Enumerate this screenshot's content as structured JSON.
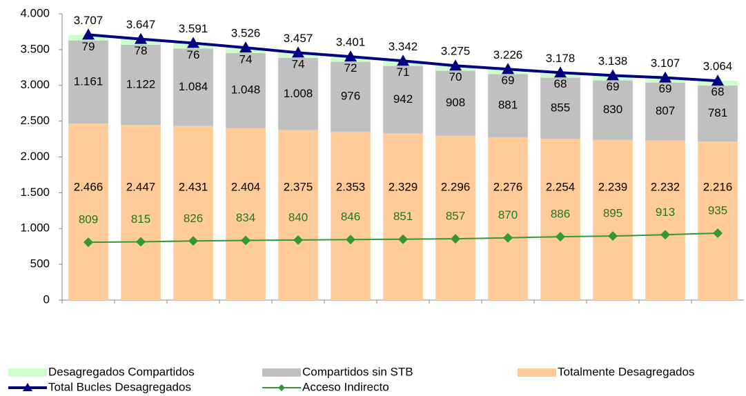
{
  "chart_data": {
    "type": "bar",
    "categories": [
      null,
      null,
      null,
      null,
      null,
      null,
      null,
      null,
      null,
      null,
      null,
      null,
      null
    ],
    "ylim": [
      0,
      4000
    ],
    "yticks": [
      0,
      500,
      {
        "value": 1000,
        "label": "1.000"
      },
      {
        "value": 1500,
        "label": "1.500"
      },
      {
        "value": 2000,
        "label": "2.000"
      },
      {
        "value": 2500,
        "label": "2.500"
      },
      {
        "value": 3000,
        "label": "3.000"
      },
      {
        "value": 3500,
        "label": "3.500"
      },
      {
        "value": 4000,
        "label": "4.000"
      }
    ],
    "series": [
      {
        "name": "Totalmente Desagregados",
        "type": "bar",
        "color": "#ffcc99",
        "values": [
          2466,
          2447,
          2431,
          2404,
          2375,
          2353,
          2329,
          2296,
          2276,
          2254,
          2239,
          2232,
          2216
        ],
        "value_labels": [
          "2.466",
          "2.447",
          "2.431",
          "2.404",
          "2.375",
          "2.353",
          "2.329",
          "2.296",
          "2.276",
          "2.254",
          "2.239",
          "2.232",
          "2.216"
        ]
      },
      {
        "name": "Compartidos sin STB",
        "type": "bar",
        "color": "#c0c0c0",
        "values": [
          1161,
          1122,
          1084,
          1048,
          1008,
          976,
          942,
          908,
          881,
          855,
          830,
          807,
          781
        ],
        "value_labels": [
          "1.161",
          "1.122",
          "1.084",
          "1.048",
          "1.008",
          "976",
          "942",
          "908",
          "881",
          "855",
          "830",
          "807",
          "781"
        ]
      },
      {
        "name": "Desagregados Compartidos",
        "type": "bar",
        "color": "#ccffcc",
        "values": [
          79,
          78,
          76,
          74,
          74,
          72,
          71,
          70,
          69,
          68,
          69,
          69,
          68
        ]
      },
      {
        "name": "Total Bucles Desagregados",
        "type": "line",
        "color": "#000080",
        "marker": "triangle",
        "values": [
          3707,
          3647,
          3591,
          3526,
          3457,
          3401,
          3342,
          3275,
          3226,
          3178,
          3138,
          3107,
          3064
        ],
        "value_labels": [
          "3.707",
          "3.647",
          "3.591",
          "3.526",
          "3.457",
          "3.401",
          "3.342",
          "3.275",
          "3.226",
          "3.178",
          "3.138",
          "3.107",
          "3.064"
        ]
      },
      {
        "name": "Acceso Indirecto",
        "type": "line",
        "color": "#339933",
        "marker": "diamond",
        "values": [
          809,
          815,
          826,
          834,
          840,
          846,
          851,
          857,
          870,
          886,
          895,
          913,
          935
        ]
      }
    ]
  }
}
